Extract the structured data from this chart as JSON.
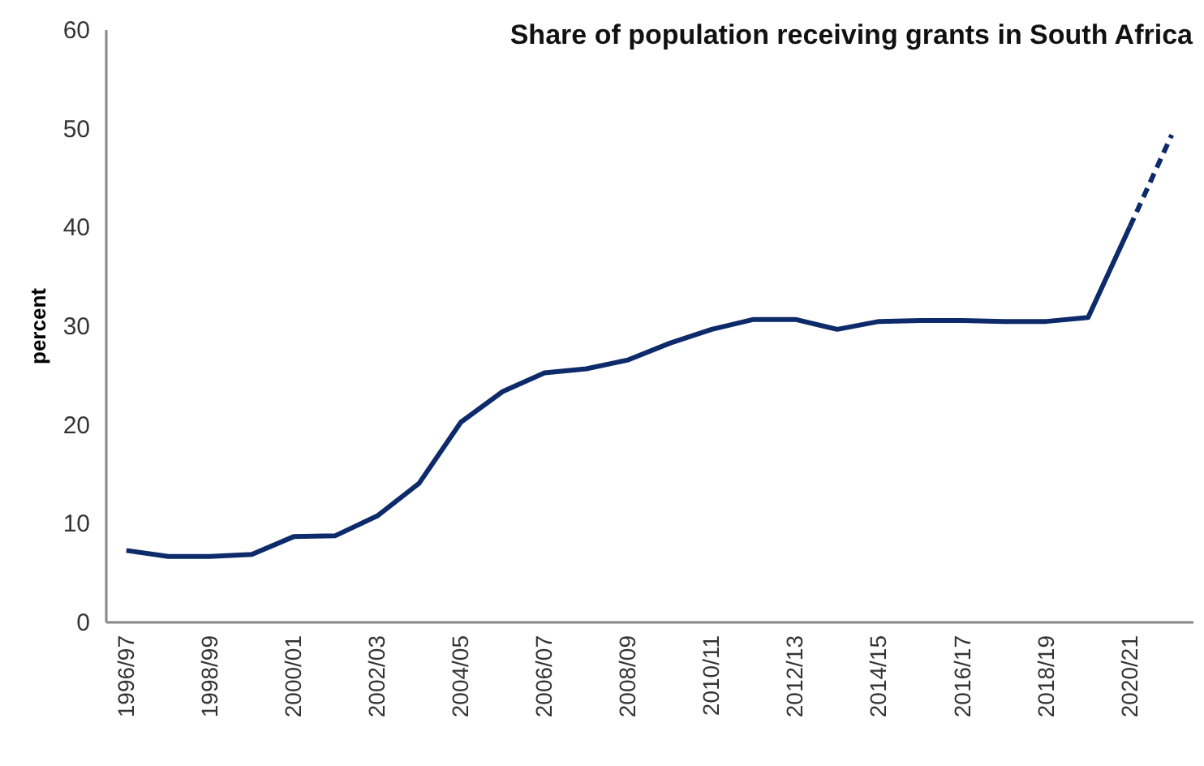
{
  "chart_data": {
    "type": "line",
    "title": "Share of population receiving grants in South Africa",
    "ylabel": "percent",
    "categories": [
      "1996/97",
      null,
      "1998/99",
      null,
      "2000/01",
      null,
      "2002/03",
      null,
      "2004/05",
      null,
      "2006/07",
      null,
      "2008/09",
      null,
      "2010/11",
      null,
      "2012/13",
      null,
      "2014/15",
      null,
      "2016/17",
      null,
      "2018/19",
      null,
      "2020/21",
      null
    ],
    "series": [
      {
        "color": "#0d2a6b",
        "line_style": "solid",
        "values": [
          7.2,
          6.6,
          6.6,
          6.8,
          8.6,
          8.7,
          10.7,
          14.0,
          20.2,
          23.3,
          25.2,
          25.6,
          26.5,
          28.2,
          29.6,
          30.6,
          30.6,
          29.6,
          30.4,
          30.5,
          30.5,
          30.4,
          30.4,
          30.8,
          40,
          null
        ]
      },
      {
        "color": "#0d2a6b",
        "line_style": "dashed",
        "values": [
          null,
          null,
          null,
          null,
          null,
          null,
          null,
          null,
          null,
          null,
          null,
          null,
          null,
          null,
          null,
          null,
          null,
          null,
          null,
          null,
          null,
          null,
          null,
          null,
          40,
          49.3
        ]
      }
    ],
    "ylim": [
      0,
      60
    ],
    "yticks": [
      0,
      10,
      20,
      30,
      40,
      50,
      60
    ],
    "grid": false,
    "marker": "none"
  }
}
